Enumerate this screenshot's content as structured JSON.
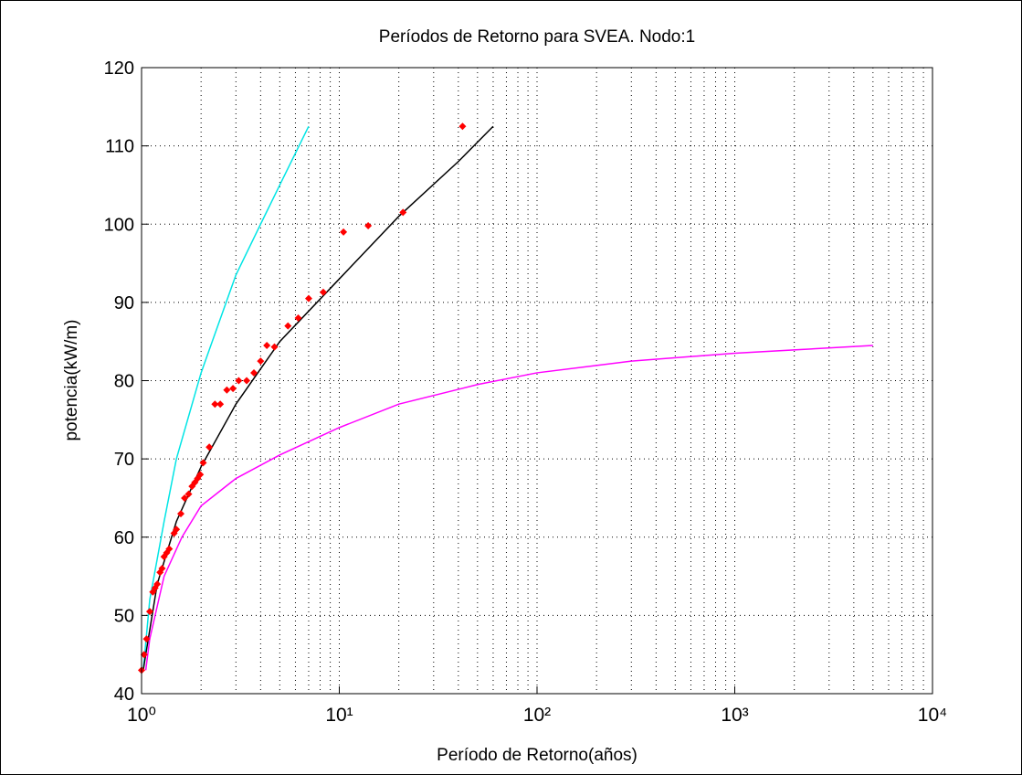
{
  "chart_data": {
    "type": "line",
    "title": "Períodos de Retorno para SVEA. Nodo:1",
    "xlabel": "Período de Retorno(años)",
    "ylabel": "potencia(kW/m)",
    "xscale": "log",
    "grid": true,
    "minor_grid": true,
    "xlim": [
      1,
      10000
    ],
    "xticks": [
      {
        "value": 1,
        "label": "10⁰"
      },
      {
        "value": 10,
        "label": "10¹"
      },
      {
        "value": 100,
        "label": "10²"
      },
      {
        "value": 1000,
        "label": "10³"
      },
      {
        "value": 10000,
        "label": "10⁴"
      }
    ],
    "ylim": [
      40,
      120
    ],
    "yticks": [
      40,
      50,
      60,
      70,
      80,
      90,
      100,
      110,
      120
    ],
    "series": [
      {
        "mode": "line",
        "color": "#00e5e5",
        "x": [
          1.02,
          1.1,
          1.3,
          1.5,
          2,
          3,
          4,
          5,
          7
        ],
        "values": [
          43,
          52,
          62,
          70,
          81,
          93.5,
          100,
          105,
          112.5
        ]
      },
      {
        "mode": "line",
        "color": "#000000",
        "x": [
          1.02,
          1.05,
          1.2,
          1.5,
          2,
          3,
          5,
          10,
          20,
          40,
          60
        ],
        "values": [
          43,
          45,
          54,
          62,
          69,
          77,
          85,
          93,
          101,
          108,
          112.5
        ]
      },
      {
        "mode": "line",
        "color": "#ff00ff",
        "x": [
          1.05,
          1.1,
          1.3,
          1.6,
          2,
          3,
          5,
          10,
          20,
          50,
          100,
          300,
          1000,
          5000
        ],
        "values": [
          43,
          47,
          55,
          60,
          64,
          67.5,
          70.5,
          74,
          77,
          79.5,
          81,
          82.5,
          83.5,
          84.5
        ]
      },
      {
        "mode": "markers",
        "color": "#ff0000",
        "x": [
          1,
          1.03,
          1.06,
          1.1,
          1.14,
          1.17,
          1.2,
          1.24,
          1.27,
          1.3,
          1.34,
          1.38,
          1.46,
          1.5,
          1.58,
          1.65,
          1.73,
          1.8,
          1.86,
          1.92,
          1.98,
          2.05,
          2.2,
          2.35,
          2.5,
          2.7,
          2.9,
          3.1,
          3.4,
          3.7,
          4.0,
          4.3,
          4.7,
          5.5,
          6.2,
          7,
          8.3,
          10.5,
          14,
          21,
          42
        ],
        "values": [
          43,
          45,
          47,
          50.5,
          53,
          53.5,
          54,
          55.5,
          56,
          57.5,
          58,
          58.5,
          60.5,
          61,
          63,
          65,
          65.5,
          66.5,
          67,
          67.5,
          68,
          69.5,
          71.5,
          77,
          77,
          78.8,
          79,
          80,
          80,
          81,
          82.5,
          84.5,
          84.3,
          87,
          88,
          90.5,
          91.3,
          99,
          99.8,
          101.5,
          112.5
        ]
      }
    ]
  }
}
